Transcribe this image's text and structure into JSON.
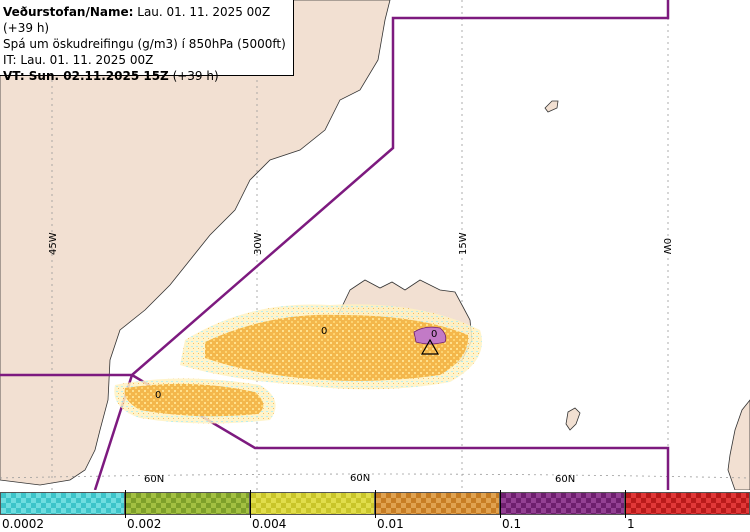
{
  "header": {
    "line1_bold": "Veðurstofan/Name:",
    "line1_rest": " Lau. 01. 11. 2025 00Z (+39 h)",
    "line2": "Spá um öskudreifingu (g/m3) í 850hPa (5000ft)",
    "line3": "IT: Lau. 01. 11. 2025 00Z",
    "line4_bold": "VT: Sun. 02.11.2025 15Z",
    "line4_rest": " (+39 h)"
  },
  "map": {
    "longitude_labels": [
      "45W",
      "30W",
      "15W",
      "0W"
    ],
    "latitude_labels": [
      "60N",
      "60N",
      "60N"
    ],
    "contour_labels": [
      "0",
      "0",
      "0"
    ],
    "colors": {
      "land": "#f2e0d2",
      "sea": "#ffffff",
      "boundary": "#7d1a7f",
      "grid": "#aaaaaa",
      "ash_low": "#f3b445",
      "ash_trace": "#aeeaea",
      "ash_high": "#c27ac6"
    }
  },
  "legend": {
    "bins": [
      {
        "color": "#3dc4c9",
        "pattern": "#6fdde0"
      },
      {
        "color": "#7ea02a",
        "pattern": "#a3c042"
      },
      {
        "color": "#c9c52a",
        "pattern": "#e1dd4c"
      },
      {
        "color": "#c77d24",
        "pattern": "#e0a250"
      },
      {
        "color": "#6e1f6e",
        "pattern": "#934093"
      },
      {
        "color": "#b81a1a",
        "pattern": "#e03838"
      }
    ],
    "labels": [
      "0.0002",
      "0.002",
      "0.004",
      "0.01",
      "0.1",
      "1"
    ]
  }
}
